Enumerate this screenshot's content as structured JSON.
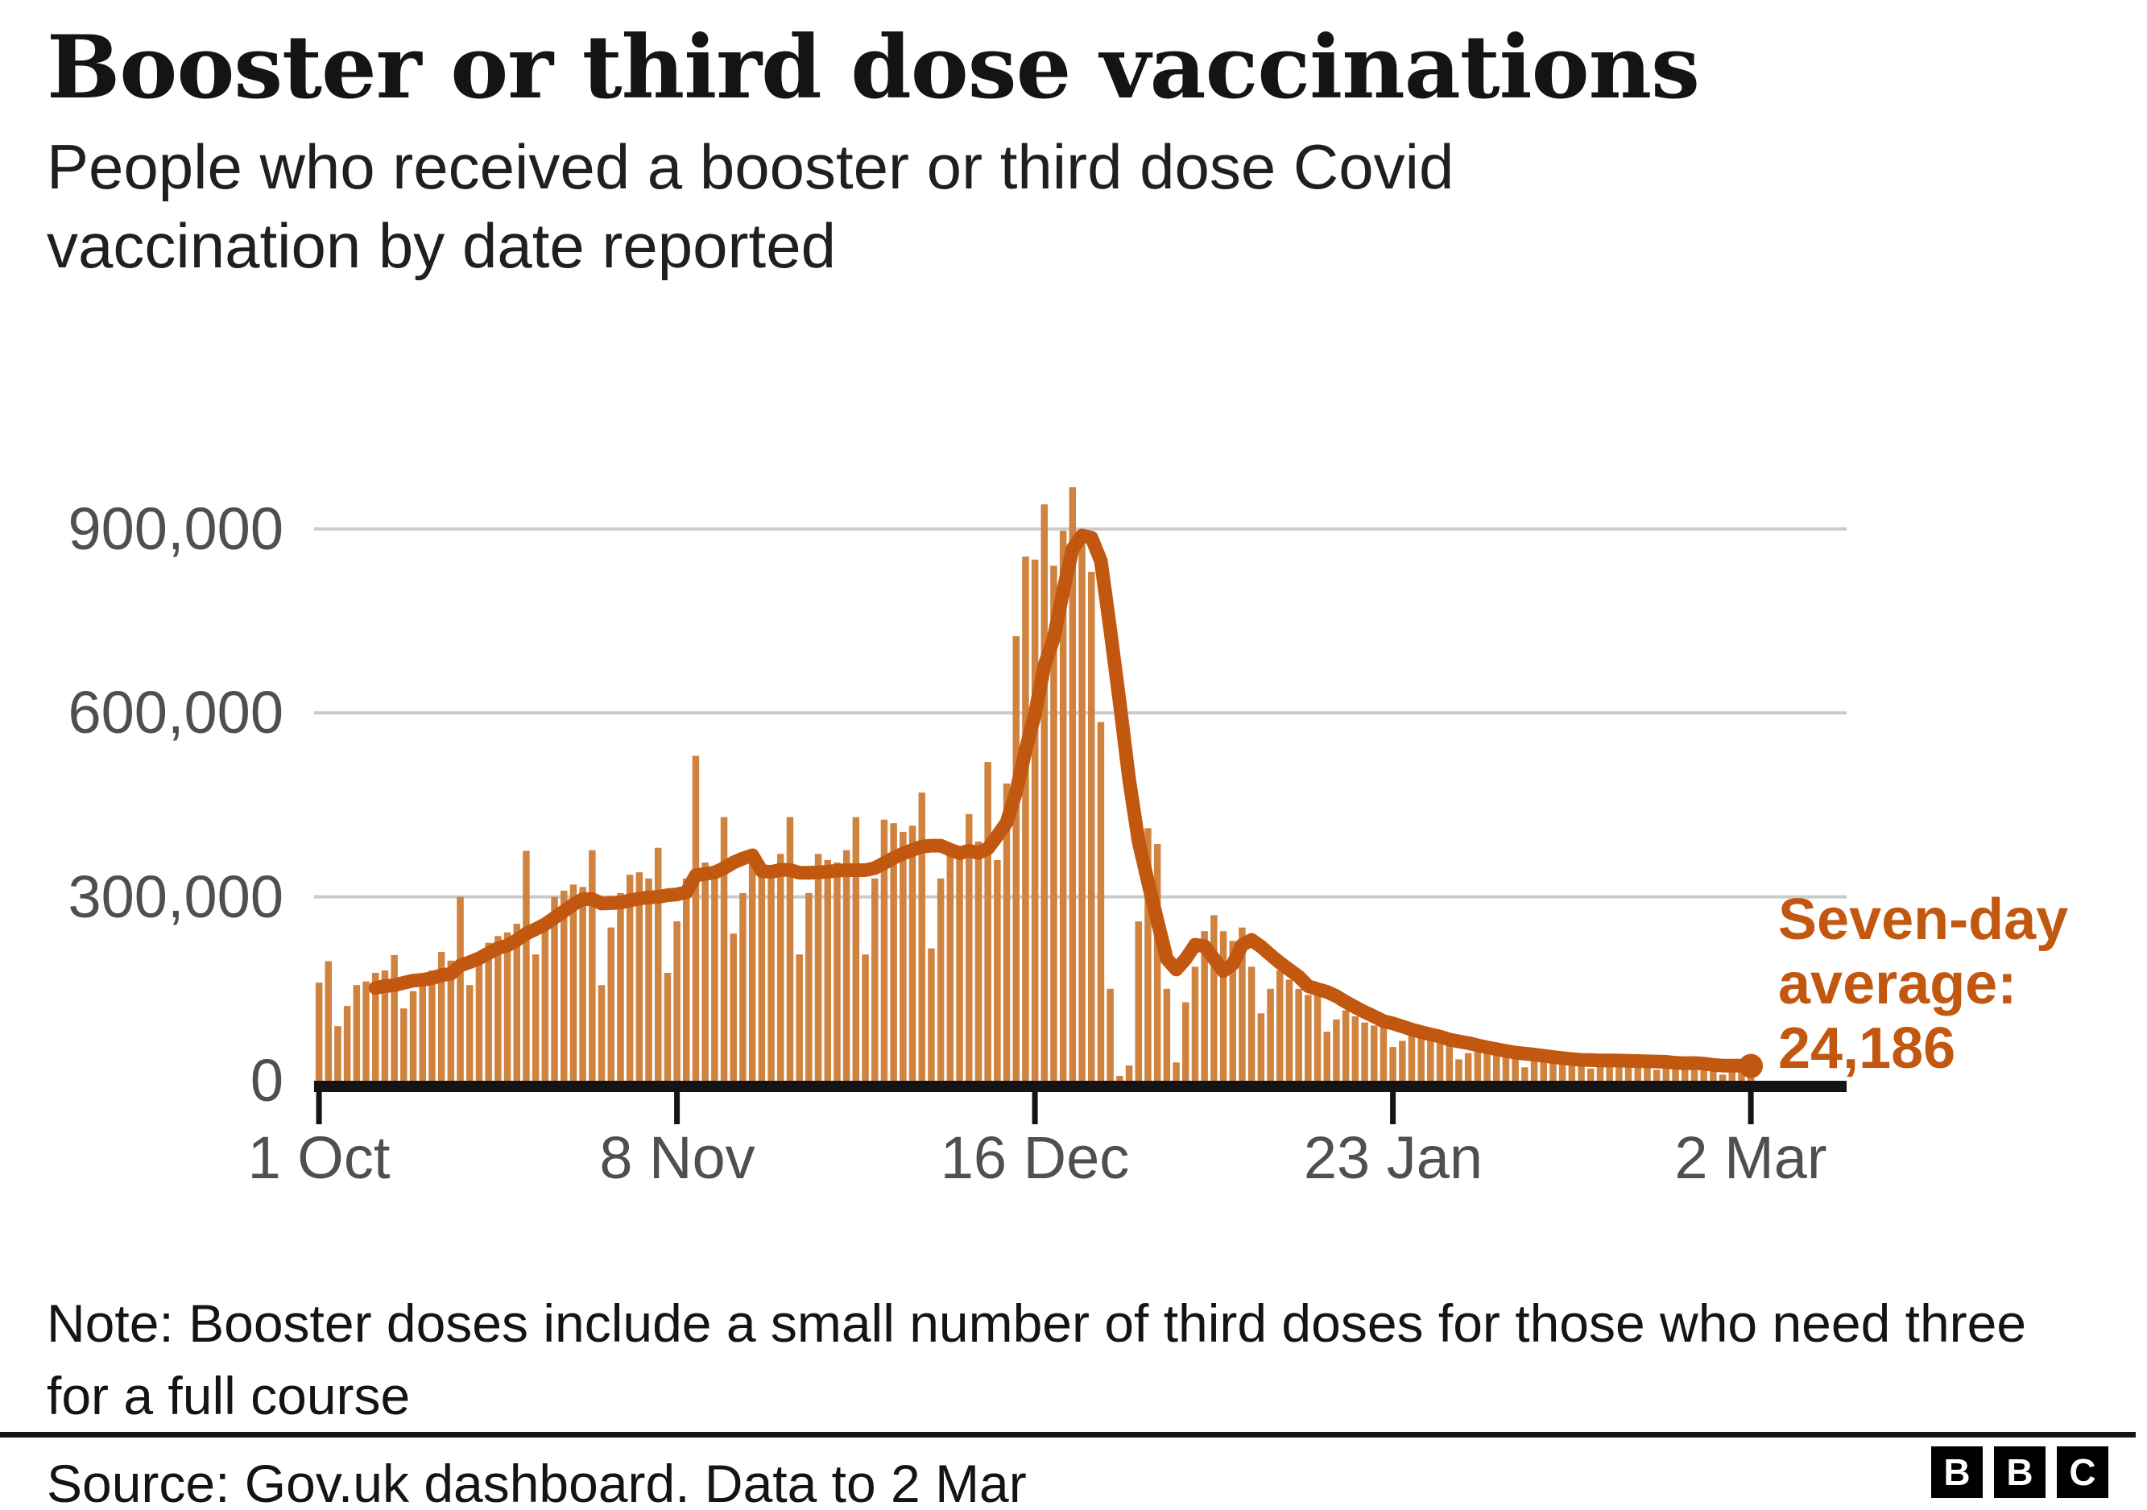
{
  "header": {
    "title": "Booster or third dose vaccinations",
    "subtitle_lines": [
      "People who received a booster or third dose Covid",
      "vaccination by date reported"
    ]
  },
  "chart_data": {
    "type": "bar",
    "title": "Booster or third dose vaccinations",
    "xlabel": "",
    "ylabel": "",
    "x_range_note": "daily values by report date, 1 Oct 2021 to 2 Mar 2022",
    "x_tick_labels": [
      "1 Oct",
      "8 Nov",
      "16 Dec",
      "23 Jan",
      "2 Mar"
    ],
    "x_tick_day_indices": [
      0,
      38,
      76,
      114,
      152
    ],
    "y_tick_labels": [
      "0",
      "300,000",
      "600,000",
      "900,000"
    ],
    "y_tick_values": [
      0,
      300000,
      600000,
      900000
    ],
    "ylim": [
      0,
      1000000
    ],
    "grid": true,
    "bar_series": {
      "name": "People vaccinated per day",
      "values": [
        160000,
        195000,
        89000,
        122000,
        156000,
        162000,
        176000,
        180000,
        205000,
        118000,
        146000,
        166000,
        180000,
        210000,
        196000,
        300000,
        156000,
        190000,
        225000,
        236000,
        242000,
        256000,
        375000,
        206000,
        246000,
        300000,
        310000,
        320000,
        316000,
        376000,
        156000,
        250000,
        306000,
        336000,
        340000,
        330000,
        380000,
        176000,
        260000,
        330000,
        530000,
        356000,
        346000,
        430000,
        240000,
        306000,
        366000,
        350000,
        346000,
        370000,
        430000,
        206000,
        306000,
        370000,
        360000,
        356000,
        376000,
        430000,
        206000,
        330000,
        426000,
        420000,
        406000,
        416000,
        470000,
        216000,
        330000,
        380000,
        380000,
        435000,
        390000,
        520000,
        360000,
        485000,
        725000,
        855000,
        850000,
        940000,
        840000,
        897000,
        968000,
        875000,
        830000,
        585000,
        150000,
        8000,
        25000,
        260000,
        412000,
        386000,
        150000,
        30000,
        128000,
        186000,
        244000,
        270000,
        244000,
        228000,
        250000,
        186000,
        110000,
        150000,
        180000,
        165000,
        150000,
        140000,
        150000,
        80000,
        100000,
        115000,
        105000,
        95000,
        90000,
        95000,
        55000,
        65000,
        80000,
        75000,
        70000,
        65000,
        60000,
        35000,
        45000,
        55000,
        52000,
        48000,
        45000,
        42000,
        22000,
        35000,
        40000,
        38000,
        36000,
        34000,
        33000,
        20000,
        30000,
        42000,
        36000,
        33000,
        31000,
        30000,
        18000,
        26000,
        30000,
        32000,
        35000,
        25000,
        15000,
        10000,
        25000,
        30000,
        29302
      ]
    },
    "line_series": {
      "name": "Seven-day average",
      "method": "trailing-7-day-mean-of-bar-series",
      "peak_value": 889300,
      "final_value": 24186
    },
    "annotation": {
      "lines": [
        "Seven-day",
        "average:"
      ],
      "value": "24,186"
    },
    "colors": {
      "bar": "#D0823F",
      "line": "#C2570F",
      "grid": "#CBCBCB",
      "axis": "#141414",
      "tick_text": "#4F4F51",
      "annotation_text": "#C2570F"
    }
  },
  "note_lines": [
    "Note: Booster doses include a small number of third doses for those who need three",
    "for a full course"
  ],
  "source": "Source: Gov.uk dashboard. Data to 2 Mar",
  "logo": {
    "letters": [
      "B",
      "B",
      "C"
    ]
  }
}
